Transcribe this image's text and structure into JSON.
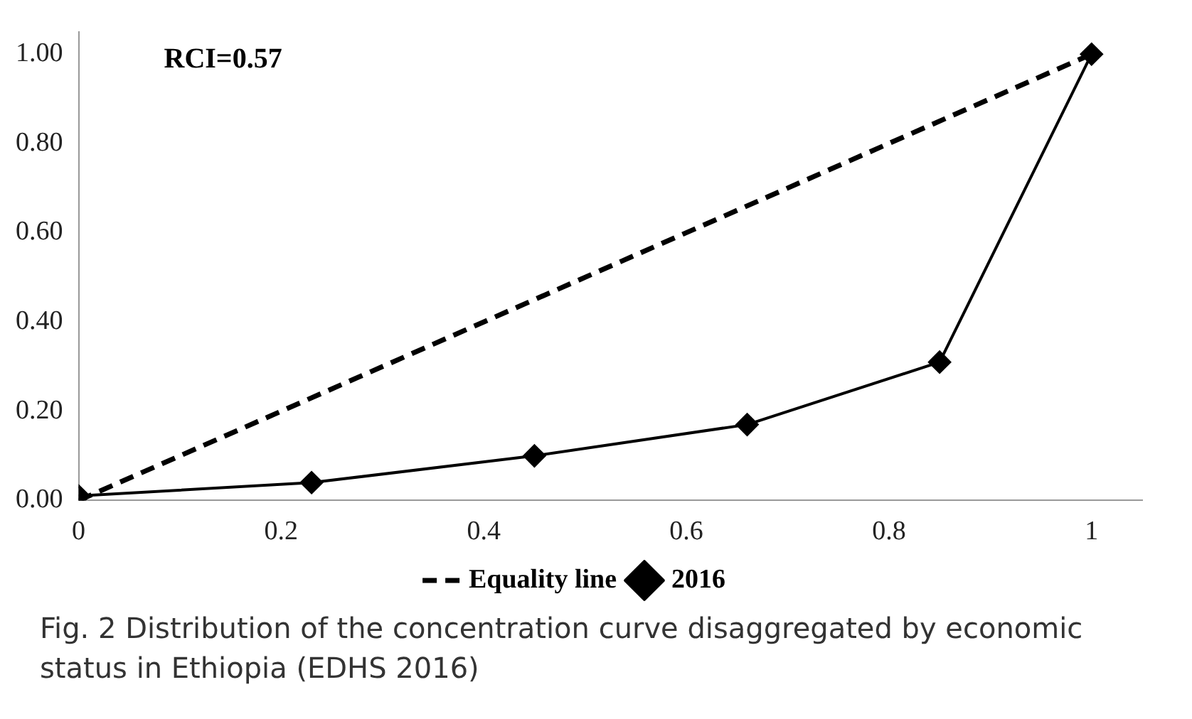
{
  "chart_data": {
    "type": "line",
    "annotations": [
      {
        "text": "RCI=0.57"
      },
      "Fig. 2 Distribution of the concentration curve disaggregated by economic status in Ethiopia (EDHS 2016)"
    ],
    "xlim": [
      0,
      1.05
    ],
    "xticks": [
      0,
      0.2,
      0.4,
      0.6,
      0.8,
      1
    ],
    "ylim": [
      0,
      1.05
    ],
    "yticks": [
      {
        "value": 0,
        "label": "0.00"
      },
      {
        "value": 0.2,
        "label": "0.20"
      },
      {
        "value": 0.4,
        "label": "0.40"
      },
      {
        "value": 0.6,
        "label": "0.60"
      },
      {
        "value": 0.8,
        "label": "0.80"
      },
      {
        "value": 1,
        "label": "1.00"
      }
    ],
    "grid": false,
    "legend": "bottom",
    "series": [
      {
        "name": "Equality line",
        "color": "#000000",
        "x": [
          0,
          1
        ],
        "values": [
          0,
          1
        ],
        "line_style": "dashed"
      },
      {
        "name": "2016",
        "color": "#000000",
        "x": [
          0,
          0.23,
          0.45,
          0.66,
          0.85,
          1
        ],
        "values": [
          0.01,
          0.04,
          0.1,
          0.17,
          0.31,
          1
        ],
        "line_style": "solid",
        "marker": "diamond"
      }
    ]
  }
}
